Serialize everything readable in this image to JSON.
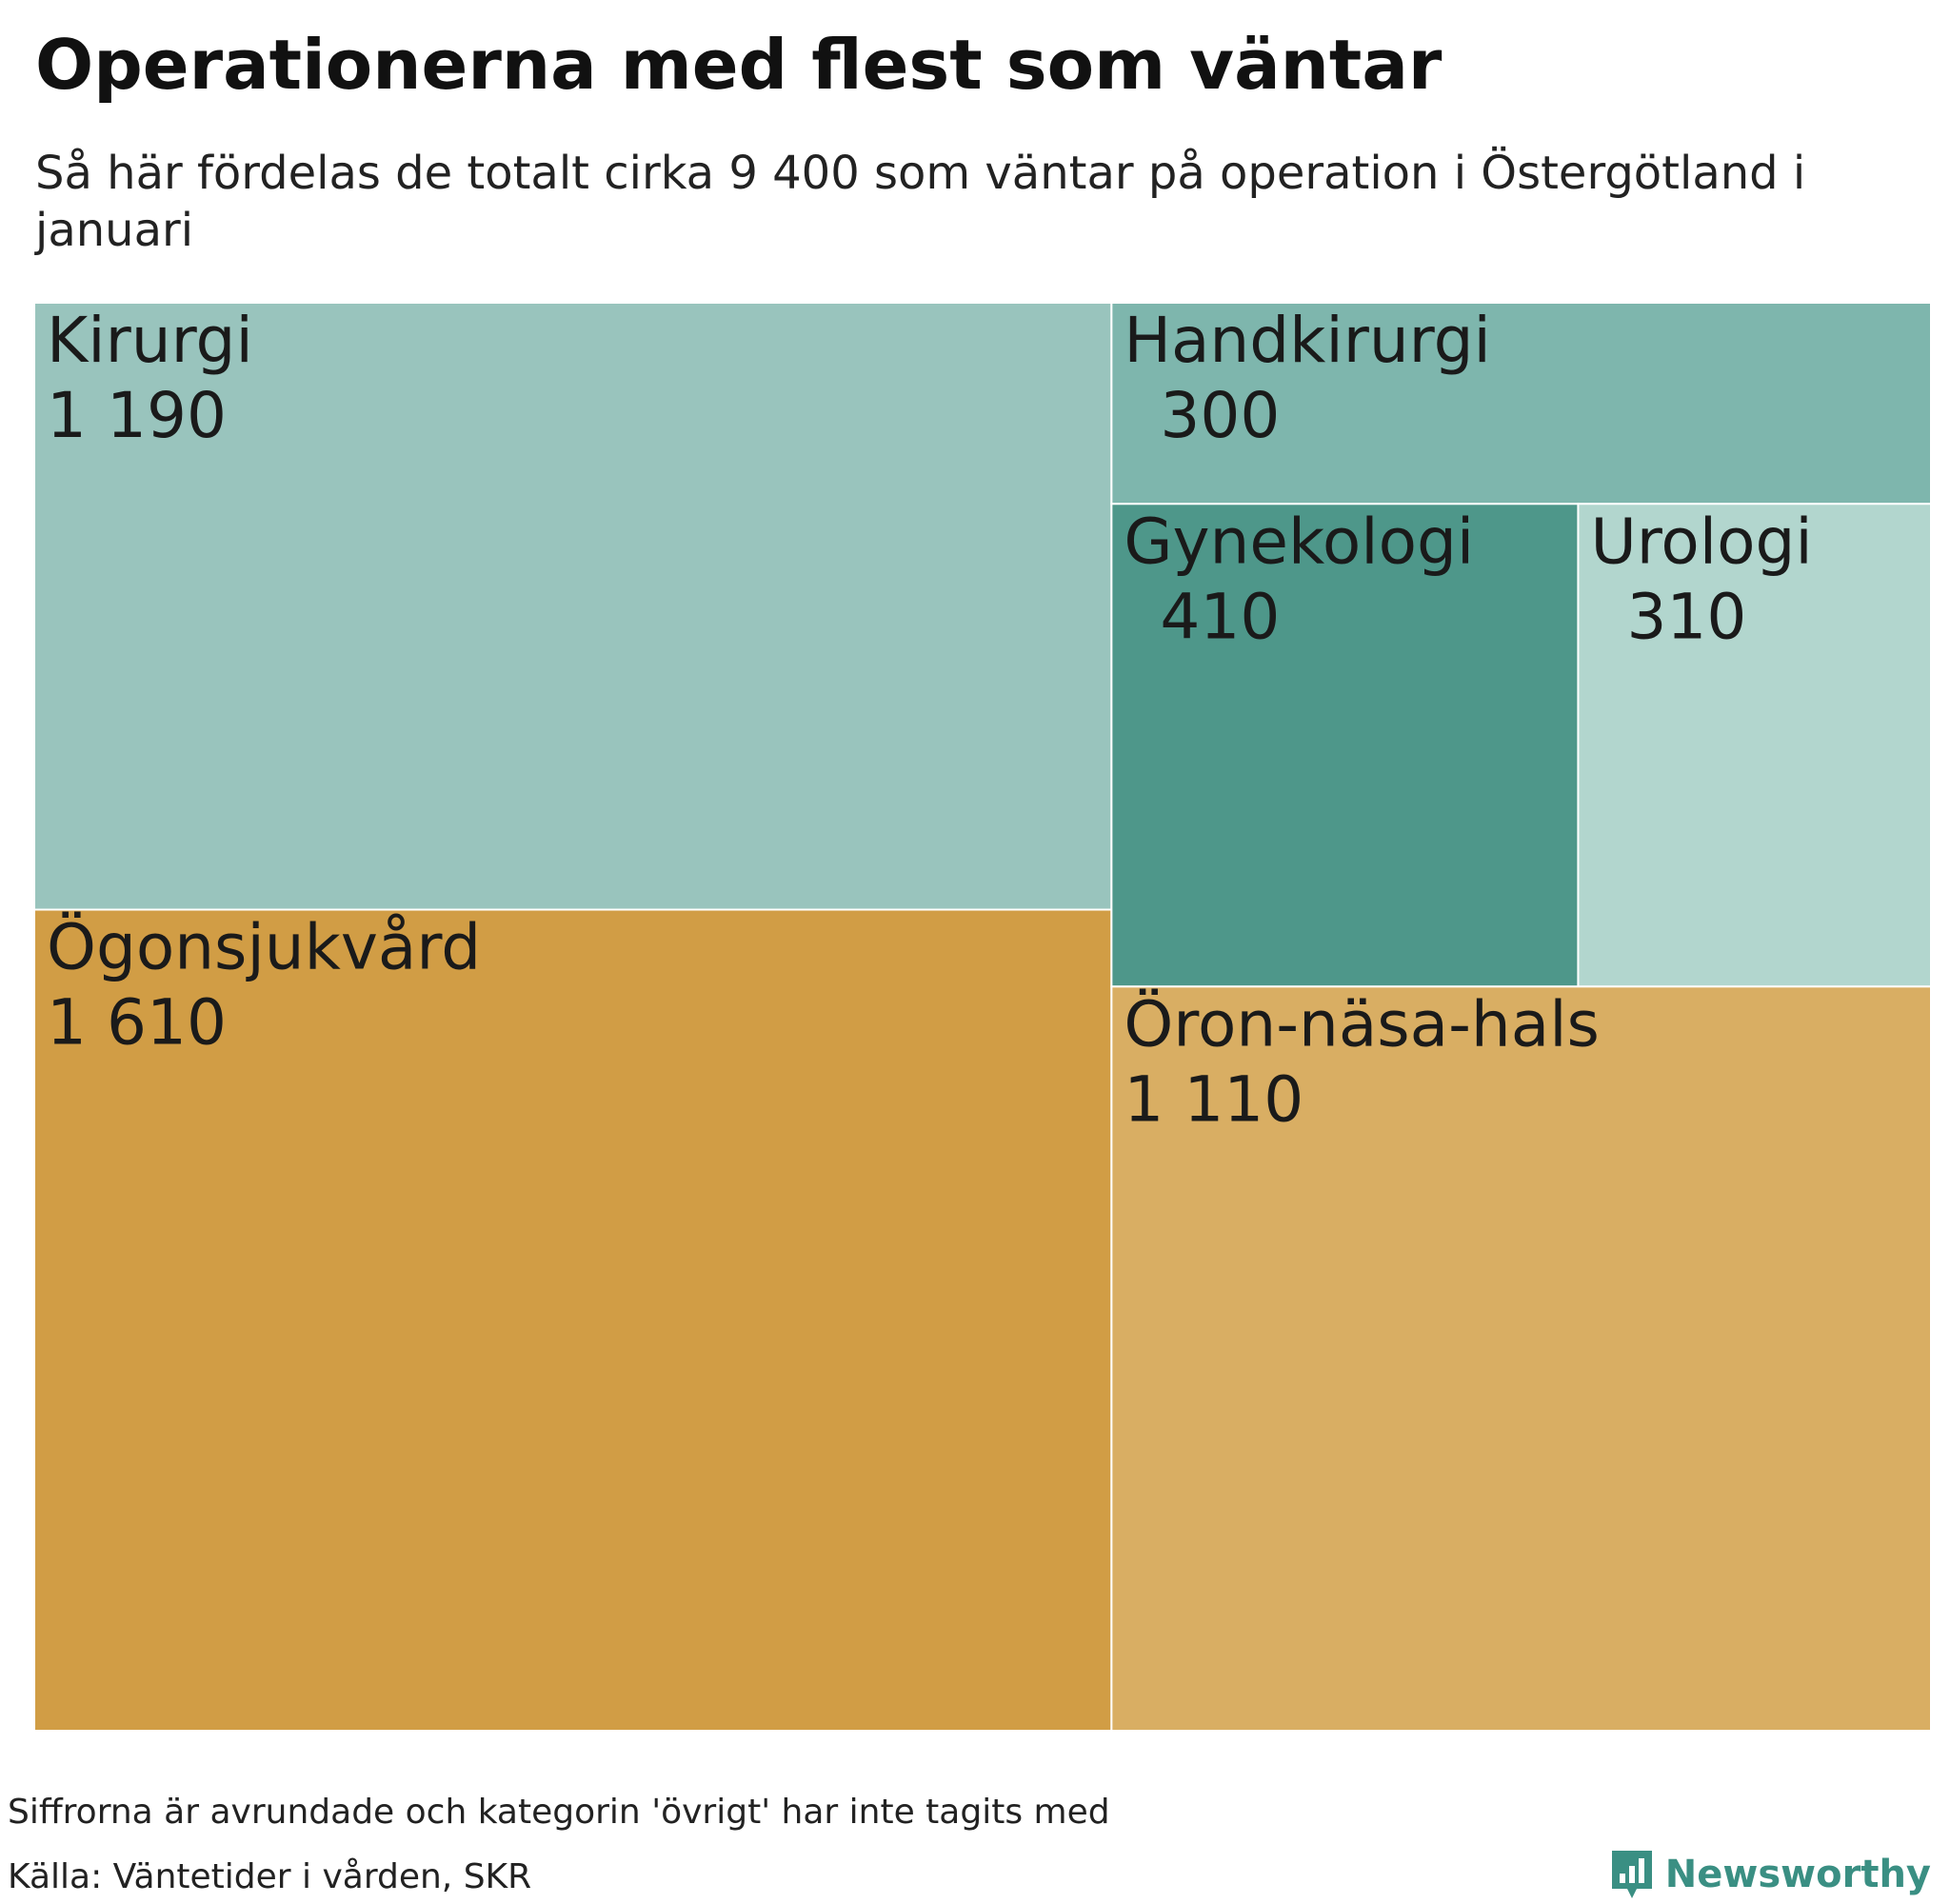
{
  "chart_data": {
    "type": "treemap",
    "title": "Operationerna med flest som väntar",
    "subtitle": "Så här fördelas de totalt cirka 9 400 som väntar på operation i Östergötland i januari",
    "items": [
      {
        "name": "Kirurgi",
        "value": 1190,
        "value_label": "1 190",
        "color": "#99c4bd"
      },
      {
        "name": "Ögonsjukvård",
        "value": 1610,
        "value_label": "1 610",
        "color": "#d19d45"
      },
      {
        "name": "Handkirurgi",
        "value": 300,
        "value_label": "300",
        "color": "#7eb6ad"
      },
      {
        "name": "Gynekologi",
        "value": 410,
        "value_label": "410",
        "color": "#4e978a"
      },
      {
        "name": "Urologi",
        "value": 310,
        "value_label": "310",
        "color": "#b2d6ce"
      },
      {
        "name": "Öron-näsa-hals",
        "value": 1110,
        "value_label": "1 110",
        "color": "#d9ae63"
      }
    ]
  },
  "footer": {
    "note": "Siffrorna är avrundade och kategorin 'övrigt' har inte tagits med",
    "source": "Källa: Väntetider i vården, SKR",
    "brand": "Newsworthy",
    "brand_color": "#3a8f83"
  }
}
